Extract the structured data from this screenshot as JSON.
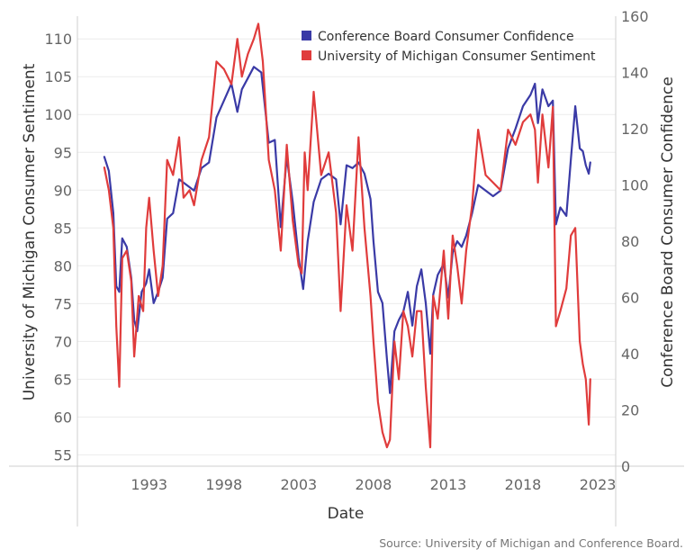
{
  "chart_data": {
    "type": "line",
    "xlabel": "Date",
    "x_ticks": [
      "1993",
      "1998",
      "2003",
      "2008",
      "2013",
      "2018",
      "2023"
    ],
    "x_range": [
      1988.2,
      2024.2
    ],
    "ylabel_left": "University of Michigan Consumer Sentiment",
    "ylabel_right": "Conference Board Consumer Confidence",
    "yleft_ticks": [
      55,
      60,
      65,
      70,
      75,
      80,
      85,
      90,
      95,
      100,
      105,
      110
    ],
    "yleft_range": [
      53.5,
      113
    ],
    "yright_ticks": [
      0,
      20,
      40,
      60,
      80,
      100,
      120,
      140,
      160
    ],
    "yright_range": [
      0,
      160
    ],
    "grid": true,
    "legend_position": "top-right",
    "source": "Source: University of Michigan and Conference Board.",
    "series": [
      {
        "name": "Conference Board Consumer Confidence",
        "color": "#3a3aa6",
        "axis": "right",
        "points": [
          [
            1990.0,
            110
          ],
          [
            1990.3,
            105
          ],
          [
            1990.6,
            90
          ],
          [
            1990.8,
            64
          ],
          [
            1991.0,
            62
          ],
          [
            1991.2,
            81
          ],
          [
            1991.5,
            78
          ],
          [
            1991.8,
            67
          ],
          [
            1992.0,
            52
          ],
          [
            1992.2,
            48
          ],
          [
            1992.5,
            62
          ],
          [
            1992.8,
            65
          ],
          [
            1993.0,
            70
          ],
          [
            1993.3,
            58
          ],
          [
            1993.6,
            62
          ],
          [
            1993.9,
            67
          ],
          [
            1994.2,
            88
          ],
          [
            1994.6,
            90
          ],
          [
            1995.0,
            102
          ],
          [
            1995.5,
            100
          ],
          [
            1996.0,
            98
          ],
          [
            1996.5,
            106
          ],
          [
            1997.0,
            108
          ],
          [
            1997.5,
            124
          ],
          [
            1998.0,
            130
          ],
          [
            1998.5,
            136
          ],
          [
            1998.9,
            126
          ],
          [
            1999.2,
            134
          ],
          [
            1999.6,
            138
          ],
          [
            2000.0,
            142
          ],
          [
            2000.5,
            140
          ],
          [
            2001.0,
            115
          ],
          [
            2001.4,
            116
          ],
          [
            2001.8,
            85
          ],
          [
            2002.2,
            110
          ],
          [
            2002.6,
            94
          ],
          [
            2003.0,
            74
          ],
          [
            2003.3,
            63
          ],
          [
            2003.6,
            80
          ],
          [
            2004.0,
            94
          ],
          [
            2004.5,
            102
          ],
          [
            2005.0,
            104
          ],
          [
            2005.5,
            102
          ],
          [
            2005.8,
            86
          ],
          [
            2006.2,
            107
          ],
          [
            2006.6,
            106
          ],
          [
            2007.0,
            108
          ],
          [
            2007.4,
            104
          ],
          [
            2007.8,
            95
          ],
          [
            2008.0,
            80
          ],
          [
            2008.3,
            62
          ],
          [
            2008.6,
            58
          ],
          [
            2008.9,
            38
          ],
          [
            2009.1,
            26
          ],
          [
            2009.4,
            48
          ],
          [
            2009.7,
            52
          ],
          [
            2010.0,
            55
          ],
          [
            2010.3,
            62
          ],
          [
            2010.6,
            50
          ],
          [
            2010.9,
            64
          ],
          [
            2011.2,
            70
          ],
          [
            2011.5,
            58
          ],
          [
            2011.8,
            40
          ],
          [
            2012.0,
            61
          ],
          [
            2012.3,
            68
          ],
          [
            2012.7,
            72
          ],
          [
            2013.0,
            60
          ],
          [
            2013.3,
            76
          ],
          [
            2013.6,
            80
          ],
          [
            2013.9,
            78
          ],
          [
            2014.2,
            82
          ],
          [
            2014.6,
            90
          ],
          [
            2015.0,
            100
          ],
          [
            2015.5,
            98
          ],
          [
            2016.0,
            96
          ],
          [
            2016.5,
            98
          ],
          [
            2017.0,
            113
          ],
          [
            2017.5,
            120
          ],
          [
            2018.0,
            128
          ],
          [
            2018.5,
            132
          ],
          [
            2018.8,
            136
          ],
          [
            2019.0,
            122
          ],
          [
            2019.3,
            134
          ],
          [
            2019.7,
            128
          ],
          [
            2020.0,
            130
          ],
          [
            2020.2,
            86
          ],
          [
            2020.5,
            92
          ],
          [
            2020.9,
            89
          ],
          [
            2021.2,
            109
          ],
          [
            2021.5,
            128
          ],
          [
            2021.8,
            113
          ],
          [
            2022.0,
            112
          ],
          [
            2022.2,
            107
          ],
          [
            2022.4,
            104
          ],
          [
            2022.5,
            108
          ]
        ]
      },
      {
        "name": "University of Michigan Consumer Sentiment",
        "color": "#e03c3c",
        "axis": "left",
        "points": [
          [
            1990.0,
            93
          ],
          [
            1990.3,
            90
          ],
          [
            1990.6,
            85
          ],
          [
            1990.8,
            72
          ],
          [
            1991.0,
            64
          ],
          [
            1991.2,
            81
          ],
          [
            1991.5,
            82
          ],
          [
            1991.8,
            78
          ],
          [
            1992.0,
            68
          ],
          [
            1992.3,
            76
          ],
          [
            1992.6,
            74
          ],
          [
            1992.8,
            85
          ],
          [
            1993.0,
            89
          ],
          [
            1993.3,
            82
          ],
          [
            1993.6,
            76
          ],
          [
            1993.9,
            80
          ],
          [
            1994.2,
            94
          ],
          [
            1994.6,
            92
          ],
          [
            1995.0,
            97
          ],
          [
            1995.3,
            89
          ],
          [
            1995.7,
            90
          ],
          [
            1996.0,
            88
          ],
          [
            1996.5,
            94
          ],
          [
            1997.0,
            97
          ],
          [
            1997.5,
            107
          ],
          [
            1998.0,
            106
          ],
          [
            1998.5,
            104
          ],
          [
            1998.9,
            110
          ],
          [
            1999.2,
            105
          ],
          [
            1999.6,
            108
          ],
          [
            2000.0,
            110
          ],
          [
            2000.3,
            112
          ],
          [
            2000.6,
            107
          ],
          [
            2001.0,
            94
          ],
          [
            2001.4,
            90
          ],
          [
            2001.8,
            82
          ],
          [
            2002.2,
            96
          ],
          [
            2002.6,
            86
          ],
          [
            2003.0,
            80
          ],
          [
            2003.2,
            79
          ],
          [
            2003.4,
            95
          ],
          [
            2003.6,
            90
          ],
          [
            2004.0,
            103
          ],
          [
            2004.5,
            92
          ],
          [
            2005.0,
            95
          ],
          [
            2005.5,
            87
          ],
          [
            2005.8,
            74
          ],
          [
            2006.2,
            88
          ],
          [
            2006.6,
            82
          ],
          [
            2007.0,
            97
          ],
          [
            2007.4,
            85
          ],
          [
            2007.8,
            76
          ],
          [
            2008.0,
            70
          ],
          [
            2008.3,
            62
          ],
          [
            2008.6,
            58
          ],
          [
            2008.9,
            56
          ],
          [
            2009.1,
            57
          ],
          [
            2009.4,
            70
          ],
          [
            2009.7,
            65
          ],
          [
            2010.0,
            74
          ],
          [
            2010.3,
            72
          ],
          [
            2010.6,
            68
          ],
          [
            2010.9,
            74
          ],
          [
            2011.2,
            74
          ],
          [
            2011.5,
            64
          ],
          [
            2011.8,
            56
          ],
          [
            2012.0,
            76
          ],
          [
            2012.3,
            73
          ],
          [
            2012.7,
            82
          ],
          [
            2013.0,
            73
          ],
          [
            2013.3,
            84
          ],
          [
            2013.6,
            80
          ],
          [
            2013.9,
            75
          ],
          [
            2014.2,
            82
          ],
          [
            2014.6,
            88
          ],
          [
            2015.0,
            98
          ],
          [
            2015.5,
            92
          ],
          [
            2016.0,
            91
          ],
          [
            2016.5,
            90
          ],
          [
            2017.0,
            98
          ],
          [
            2017.5,
            96
          ],
          [
            2018.0,
            99
          ],
          [
            2018.5,
            100
          ],
          [
            2018.8,
            98
          ],
          [
            2019.0,
            91
          ],
          [
            2019.3,
            100
          ],
          [
            2019.7,
            93
          ],
          [
            2020.0,
            101
          ],
          [
            2020.2,
            72
          ],
          [
            2020.5,
            74
          ],
          [
            2020.9,
            77
          ],
          [
            2021.2,
            84
          ],
          [
            2021.5,
            85
          ],
          [
            2021.8,
            70
          ],
          [
            2022.0,
            67
          ],
          [
            2022.2,
            65
          ],
          [
            2022.4,
            59
          ],
          [
            2022.5,
            65
          ]
        ]
      }
    ]
  }
}
